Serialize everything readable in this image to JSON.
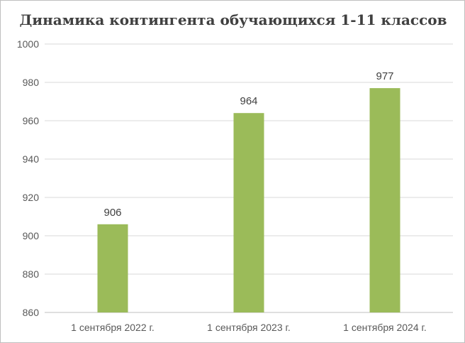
{
  "chart_data": {
    "type": "bar",
    "title": "Динамика  контингента  обучающихся 1-11 классов",
    "categories": [
      "1 сентября 2022 г.",
      "1 сентября 2023 г.",
      "1 сентября 2024 г."
    ],
    "values": [
      906,
      964,
      977
    ],
    "ylim": [
      860,
      1000
    ],
    "yticks": [
      860,
      880,
      900,
      920,
      940,
      960,
      980,
      1000
    ],
    "grid": true,
    "data_labels": true,
    "bar_color": "#9bbb59"
  }
}
